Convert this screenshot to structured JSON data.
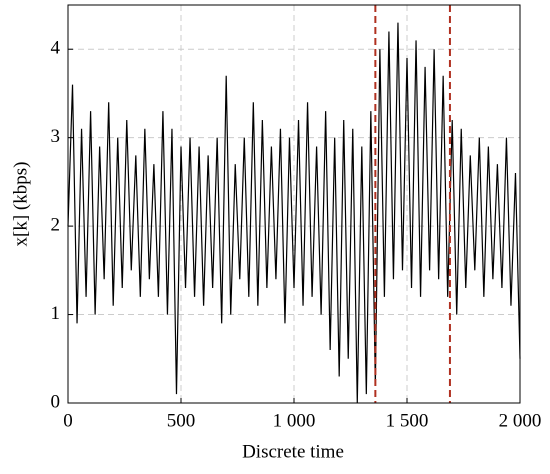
{
  "chart_data": {
    "type": "line",
    "xlabel": "Discrete time",
    "ylabel": "x[k] (kbps)",
    "x": [
      0,
      20,
      40,
      60,
      80,
      100,
      120,
      140,
      160,
      180,
      200,
      220,
      240,
      260,
      280,
      300,
      320,
      340,
      360,
      380,
      400,
      420,
      440,
      460,
      480,
      500,
      520,
      540,
      560,
      580,
      600,
      620,
      640,
      660,
      680,
      700,
      720,
      740,
      760,
      780,
      800,
      820,
      840,
      860,
      880,
      900,
      920,
      940,
      960,
      980,
      1000,
      1020,
      1040,
      1060,
      1080,
      1100,
      1120,
      1140,
      1160,
      1180,
      1200,
      1220,
      1240,
      1260,
      1280,
      1300,
      1320,
      1340,
      1360,
      1380,
      1400,
      1420,
      1440,
      1460,
      1480,
      1500,
      1520,
      1540,
      1560,
      1580,
      1600,
      1620,
      1640,
      1660,
      1680,
      1700,
      1720,
      1740,
      1760,
      1780,
      1800,
      1820,
      1840,
      1860,
      1880,
      1900,
      1920,
      1940,
      1960,
      1980,
      2000
    ],
    "series": [
      {
        "color": "#000000",
        "values": [
          2.0,
          3.6,
          0.9,
          3.1,
          1.2,
          3.3,
          1.0,
          2.9,
          1.4,
          3.4,
          1.1,
          3.0,
          1.3,
          3.2,
          1.5,
          2.8,
          1.2,
          3.1,
          1.4,
          2.7,
          1.2,
          3.3,
          1.0,
          3.1,
          0.1,
          2.9,
          1.3,
          3.0,
          1.2,
          2.9,
          1.1,
          2.8,
          1.3,
          3.0,
          0.9,
          3.7,
          1.0,
          2.7,
          1.4,
          3.0,
          1.2,
          3.4,
          1.1,
          3.2,
          1.3,
          2.9,
          1.4,
          3.1,
          0.9,
          3.0,
          1.3,
          3.2,
          1.1,
          3.4,
          1.2,
          2.9,
          1.0,
          3.3,
          0.6,
          3.0,
          0.3,
          3.2,
          0.5,
          3.1,
          0.0,
          2.9,
          0.1,
          3.3,
          0.2,
          4.0,
          1.2,
          4.2,
          1.4,
          4.3,
          1.5,
          3.9,
          1.3,
          4.1,
          1.2,
          3.8,
          1.5,
          4.0,
          1.4,
          3.7,
          1.2,
          3.2,
          1.0,
          3.1,
          1.3,
          2.8,
          1.5,
          3.0,
          1.2,
          2.9,
          1.4,
          2.7,
          1.3,
          3.0,
          1.1,
          2.6,
          0.5
        ]
      }
    ],
    "vlines": [
      1360,
      1690
    ],
    "vline_color": "#b03020",
    "xlim": [
      0,
      2000
    ],
    "xticks": [
      0,
      500,
      {
        "value": 1000,
        "label": "1 000"
      },
      {
        "value": 1500,
        "label": "1 500"
      },
      {
        "value": 2000,
        "label": "2 000"
      }
    ],
    "ylim": [
      0,
      4.5
    ],
    "yticks": [
      0,
      1,
      2,
      3,
      4
    ],
    "grid": true
  }
}
